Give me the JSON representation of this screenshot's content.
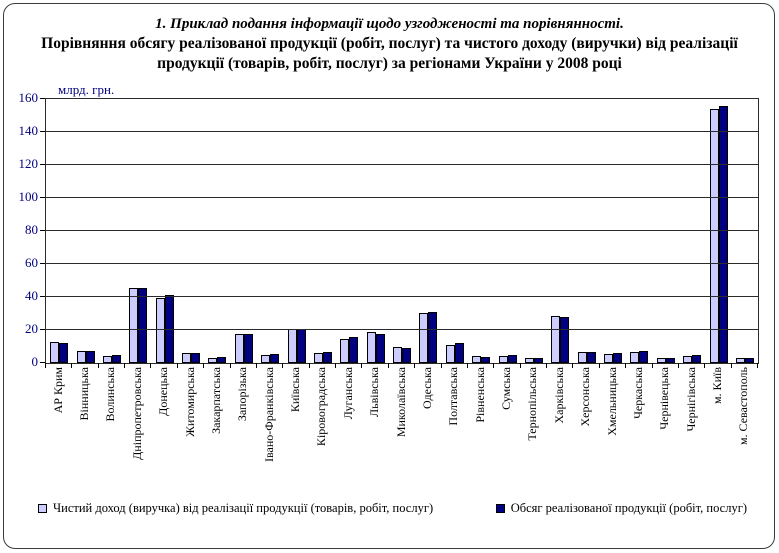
{
  "figure": {
    "caption_italic": "1. Приклад подання інформації щодо узгодженості та порівнянності.",
    "title": "Порівняння обсягу реалізованої продукції (робіт, послуг) та чистого доходу (виручки) від реалізації продукції (товарів, робіт, послуг) за регіонами України у 2008 році"
  },
  "chart_data": {
    "type": "bar",
    "title": "Порівняння обсягу реалізованої продукції (робіт, послуг) та чистого доходу (виручки) від реалізації продукції (товарів, робіт, послуг) за регіонами України у 2008 році",
    "unit_label": "млрд. грн.",
    "xlabel": "",
    "ylabel": "млрд. грн.",
    "ylim": [
      0,
      160
    ],
    "ytick_step": 20,
    "yticks": [
      0,
      20,
      40,
      60,
      80,
      100,
      120,
      140,
      160
    ],
    "grid": true,
    "legend_position": "bottom",
    "categories": [
      "АР Крим",
      "Вінницька",
      "Волинська",
      "Дніпропетровська",
      "Донецька",
      "Житомирська",
      "Закарпатська",
      "Запорізька",
      "Івано-Франківська",
      "Київська",
      "Кіровоградська",
      "Луганська",
      "Львівська",
      "Миколаївська",
      "Одеська",
      "Полтавська",
      "Рівненська",
      "Сумська",
      "Тернопільська",
      "Харківська",
      "Херсонська",
      "Хмельницька",
      "Черкаська",
      "Чернівецька",
      "Чернігівська",
      "м. Київ",
      "м. Севастополь"
    ],
    "series": [
      {
        "name": "Чистий доход (виручка) від реалізації продукції (товарів, робіт, послуг)",
        "color": "#ccccff",
        "values": [
          12.5,
          7,
          4.5,
          45.5,
          39.5,
          6,
          3.3,
          17.5,
          5,
          20.5,
          6,
          14.5,
          18.5,
          9.5,
          30.5,
          11,
          4.3,
          4.3,
          3,
          28.5,
          6.5,
          5.5,
          6.5,
          3,
          4.5,
          154,
          3
        ]
      },
      {
        "name": "Обсяг реалізованої продукції (робіт, послуг)",
        "color": "#000080",
        "values": [
          12,
          7,
          4.6,
          45.5,
          41,
          6.2,
          3.5,
          17.5,
          5.5,
          20.5,
          6.5,
          15.5,
          17.5,
          9,
          31,
          12,
          3.5,
          4.8,
          3.2,
          28,
          6.5,
          6,
          7,
          3.2,
          5,
          156,
          3.2
        ]
      }
    ]
  }
}
